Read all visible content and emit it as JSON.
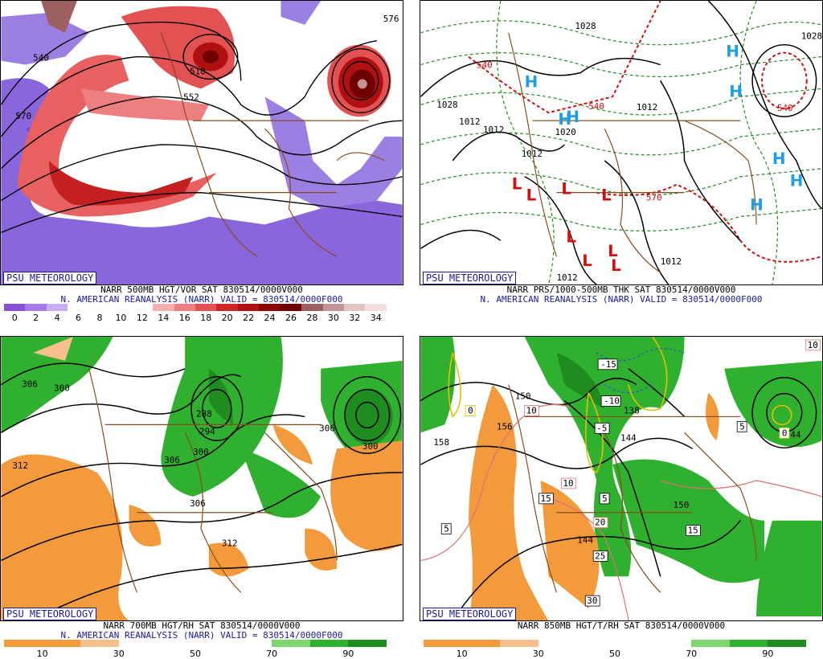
{
  "panels": [
    {
      "id": "vort500",
      "badge": "PSU METEOROLOGY",
      "title": "NARR 500MB HGT/VOR SAT 830514/0000V000",
      "subtitle": "N. AMERICAN REANALYSIS (NARR) VALID = 830514/0000F000",
      "scale_colors": [
        "#8a4fd8",
        "#a77ae8",
        "#c7adf2",
        "#ffffff",
        "#ffffff",
        "#ffffff",
        "#ffffff",
        "#f4b0b0",
        "#ec8080",
        "#e35252",
        "#d02525",
        "#b01010",
        "#8c0000",
        "#6e0000",
        "#9c6060",
        "#c29595",
        "#e2c4c4",
        "#f4dede"
      ],
      "scale_ticks": [
        "0",
        "2",
        "4",
        "6",
        "8",
        "10",
        "12",
        "14",
        "16",
        "18",
        "20",
        "22",
        "24",
        "26",
        "28",
        "30",
        "32",
        "34"
      ],
      "contour_labels": [
        "510",
        "552",
        "540",
        "570",
        "576"
      ]
    },
    {
      "id": "thk",
      "badge": "PSU METEOROLOGY",
      "title": "NARR PRS/1000-500MB THK SAT 830514/0000V000",
      "subtitle": "N. AMERICAN REANALYSIS (NARR) VALID = 830514/0000F000",
      "isobar_labels": [
        "1028",
        "1028",
        "1012",
        "1012",
        "1012",
        "1020",
        "1012",
        "1012",
        "1012",
        "1020",
        "1028"
      ],
      "thickness_labels": [
        "540",
        "540",
        "540",
        "570"
      ],
      "high_symbol": "H",
      "low_symbol": "L"
    },
    {
      "id": "rh700",
      "badge": "PSU METEOROLOGY",
      "title": "NARR 700MB HGT/RH SAT 830514/0000V000",
      "subtitle": "N. AMERICAN REANALYSIS (NARR) VALID = 830514/0000F000",
      "scale_colors": [
        "#f29a3c",
        "#f29a3c",
        "#f7c08a",
        "#ffffff",
        "#ffffff",
        "#ffffff",
        "#ffffff",
        "#7fd66e",
        "#2fb02f",
        "#1e8c1e"
      ],
      "scale_ticks": [
        "10",
        "30",
        "50",
        "70",
        "90"
      ],
      "contour_labels": [
        "306",
        "300",
        "288",
        "294",
        "300",
        "306",
        "306",
        "312",
        "312",
        "300",
        "306",
        "312"
      ]
    },
    {
      "id": "t850",
      "badge": "PSU METEOROLOGY",
      "title": "NARR 850MB HGT/T/RH SAT 830514/0000V000",
      "subtitle": "",
      "scale_colors": [
        "#f29a3c",
        "#f29a3c",
        "#f7c08a",
        "#ffffff",
        "#ffffff",
        "#ffffff",
        "#ffffff",
        "#7fd66e",
        "#2fb02f",
        "#1e8c1e"
      ],
      "scale_ticks": [
        "10",
        "30",
        "50",
        "70",
        "90"
      ],
      "height_labels": [
        "150",
        "158",
        "150",
        "144",
        "156",
        "138",
        "144",
        "150",
        "144"
      ],
      "temp_labels": [
        "-15",
        "-10",
        "-5",
        "0",
        "0",
        "5",
        "5",
        "5",
        "10",
        "10",
        "10",
        "15",
        "15",
        "20",
        "25",
        "30"
      ]
    }
  ]
}
